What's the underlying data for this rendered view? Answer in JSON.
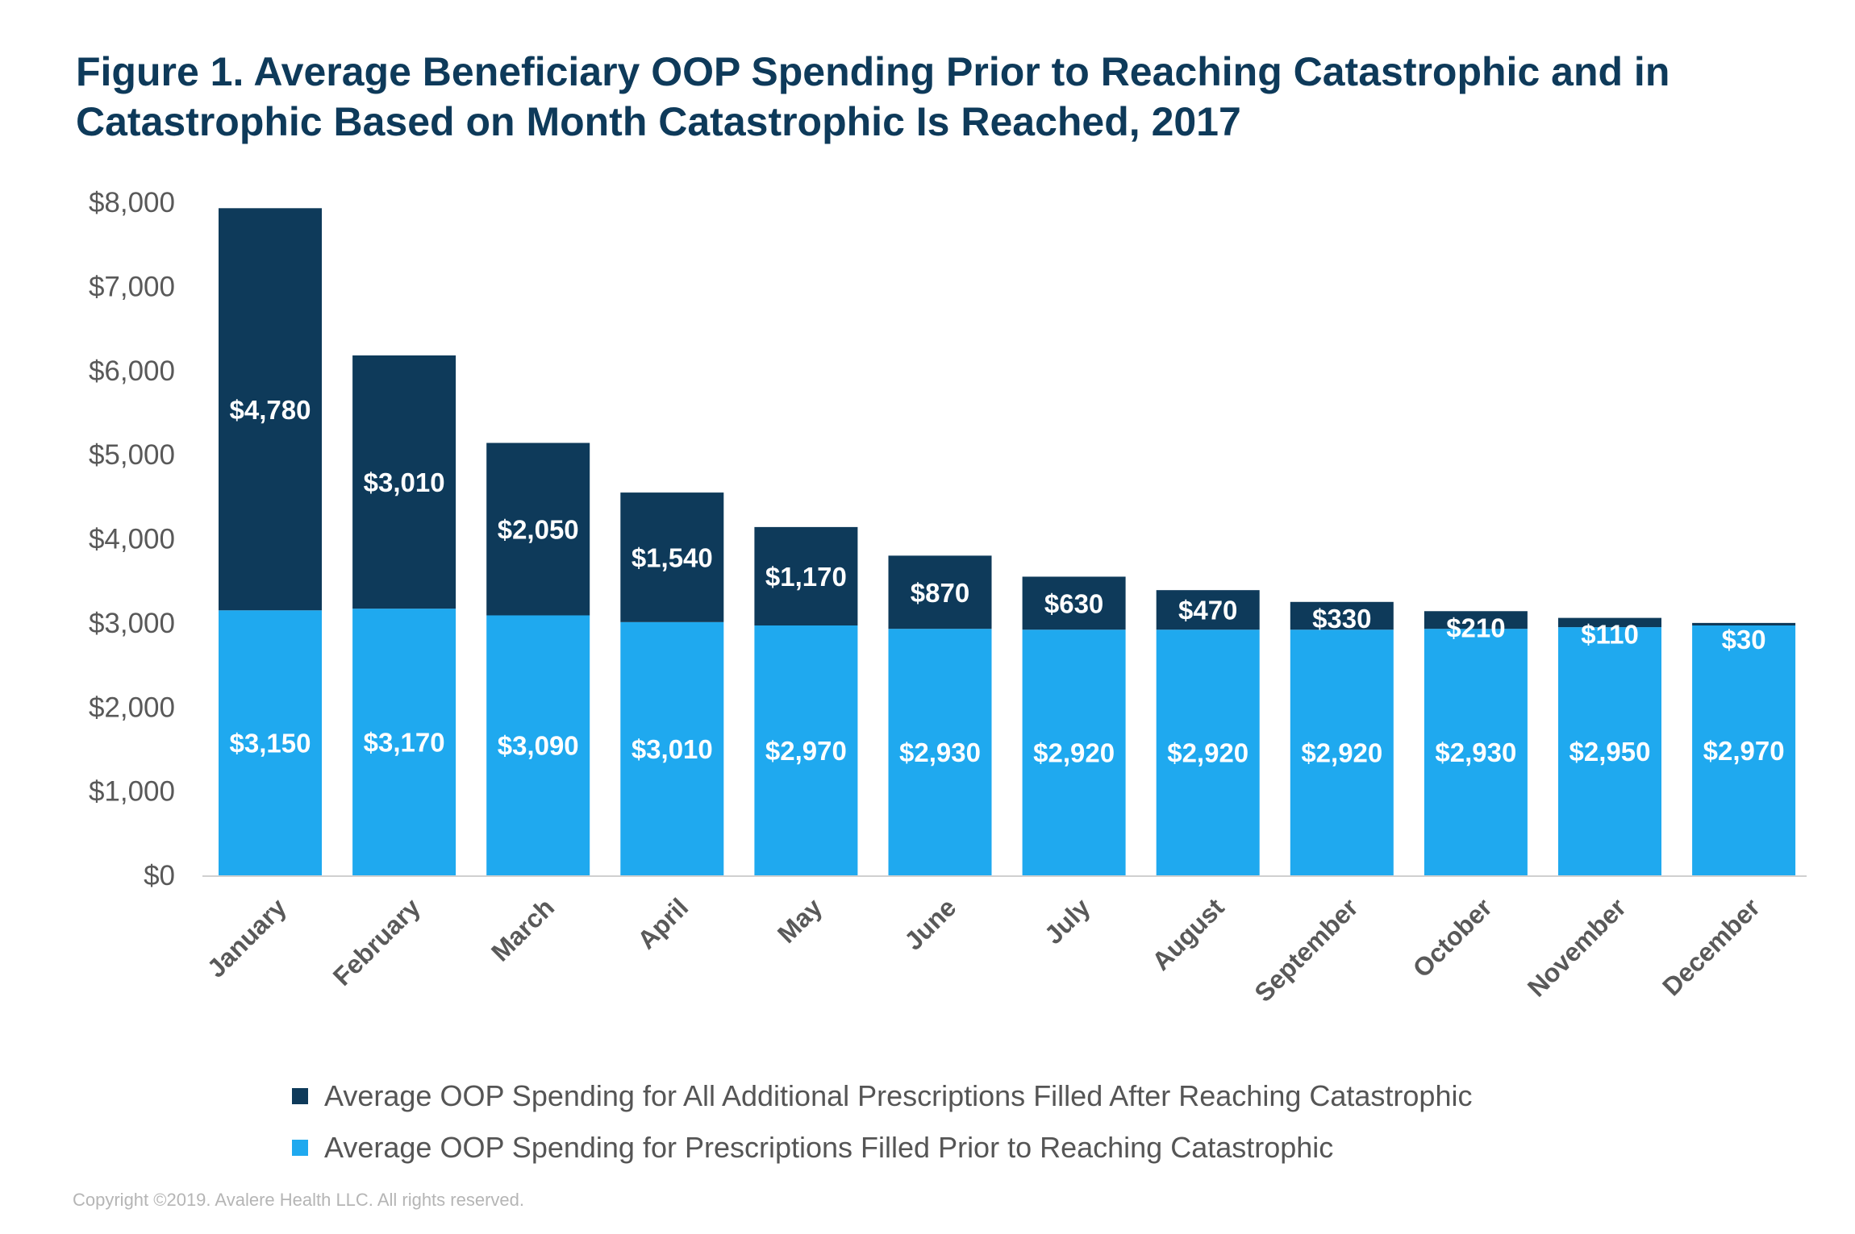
{
  "chart_data": {
    "type": "bar",
    "stacked": true,
    "title": "Figure 1. Average Beneficiary OOP Spending Prior to Reaching Catastrophic and in Catastrophic Based on Month Catastrophic Is Reached, 2017",
    "xlabel": "",
    "ylabel": "",
    "ylim": [
      0,
      8000
    ],
    "yticks": [
      "$0",
      "$1,000",
      "$2,000",
      "$3,000",
      "$4,000",
      "$5,000",
      "$6,000",
      "$7,000",
      "$8,000"
    ],
    "grid": false,
    "legend_position": "bottom",
    "categories": [
      "January",
      "February",
      "March",
      "April",
      "May",
      "June",
      "July",
      "August",
      "September",
      "October",
      "November",
      "December"
    ],
    "series": [
      {
        "name": "Average OOP Spending for Prescriptions Filled Prior to Reaching Catastrophic",
        "color": "#1fa9ef",
        "values": [
          3150,
          3170,
          3090,
          3010,
          2970,
          2930,
          2920,
          2920,
          2920,
          2930,
          2950,
          2970
        ],
        "labels": [
          "$3,150",
          "$3,170",
          "$3,090",
          "$3,010",
          "$2,970",
          "$2,930",
          "$2,920",
          "$2,920",
          "$2,920",
          "$2,930",
          "$2,950",
          "$2,970"
        ]
      },
      {
        "name": "Average OOP Spending for All Additional Prescriptions Filled After Reaching Catastrophic",
        "color": "#0e3a5a",
        "values": [
          4780,
          3010,
          2050,
          1540,
          1170,
          870,
          630,
          470,
          330,
          210,
          110,
          30
        ],
        "labels": [
          "$4,780",
          "$3,010",
          "$2,050",
          "$1,540",
          "$1,170",
          "$870",
          "$630",
          "$470",
          "$330",
          "$210",
          "$110",
          "$30"
        ]
      }
    ]
  },
  "legend": [
    {
      "label": "Average OOP Spending for All Additional Prescriptions Filled After Reaching Catastrophic",
      "color": "#0e3a5a"
    },
    {
      "label": "Average OOP Spending for Prescriptions Filled Prior to Reaching Catastrophic",
      "color": "#1fa9ef"
    }
  ],
  "copyright": "Copyright ©2019. Avalere Health LLC. All rights reserved."
}
